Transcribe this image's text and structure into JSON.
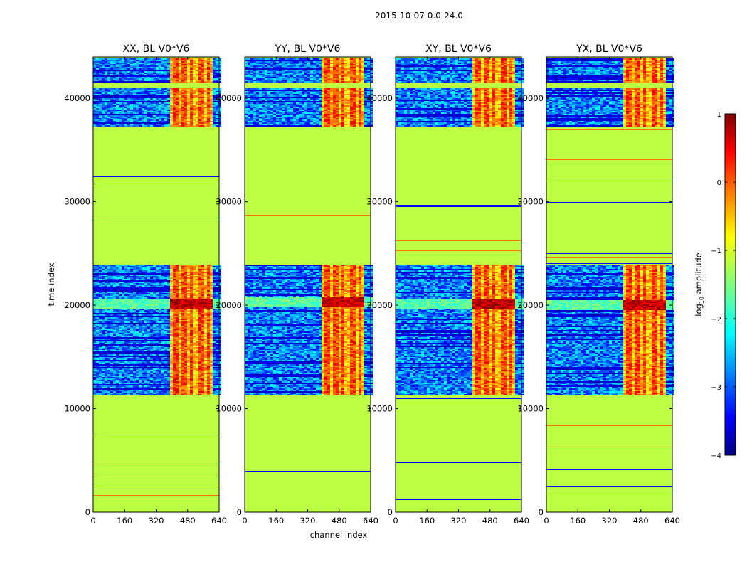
{
  "chart_data": {
    "type": "heatmap",
    "suptitle": "2015-10-07 0.0-24.0",
    "xlabel": "channel index",
    "ylabel": "time index",
    "xlim": [
      0,
      640
    ],
    "ylim": [
      0,
      44000
    ],
    "xticks": [
      0,
      160,
      320,
      480,
      640
    ],
    "xtick_labels": [
      "0",
      "160",
      "320",
      "480",
      "640"
    ],
    "yticks": [
      0,
      10000,
      20000,
      30000,
      40000
    ],
    "ytick_labels": [
      "0",
      "10000",
      "20000",
      "30000",
      "40000"
    ],
    "colorbar": {
      "label": "log10 amplitude",
      "label_main": "log",
      "label_sub": "10",
      "label_rest": " amplitude",
      "range": [
        -4,
        1
      ],
      "colormap": "jet",
      "ticks": [
        1,
        0,
        -1,
        -2,
        -3,
        -4
      ],
      "tick_labels": [
        "1",
        "0",
        "−1",
        "−2",
        "−3",
        "−4"
      ]
    },
    "background_level": -1.2,
    "flagged_time_ranges": [
      [
        0,
        11300
      ],
      [
        24000,
        37300
      ],
      [
        41000,
        41600
      ]
    ],
    "data_time_ranges": [
      [
        11300,
        24000
      ],
      [
        37300,
        44000
      ]
    ],
    "rfi_channel_range": [
      385,
      600
    ],
    "rfi_channel_peaks": [
      410,
      455,
      490,
      540,
      575
    ],
    "bright_band_time": [
      19700,
      20700
    ],
    "panels": [
      {
        "title": "XX, BL V0*V6",
        "rfi_channels": [
          385,
          600
        ],
        "bright_band": [
          19700,
          20700
        ]
      },
      {
        "title": "YY, BL V0*V6",
        "rfi_channels": [
          385,
          600
        ],
        "bright_band": [
          19900,
          20800
        ]
      },
      {
        "title": "XY, BL V0*V6",
        "rfi_channels": [
          385,
          600
        ],
        "bright_band": [
          19800,
          20700
        ]
      },
      {
        "title": "YX, BL V0*V6",
        "rfi_channels": [
          385,
          600
        ],
        "bright_band": [
          19600,
          20600
        ]
      }
    ]
  }
}
